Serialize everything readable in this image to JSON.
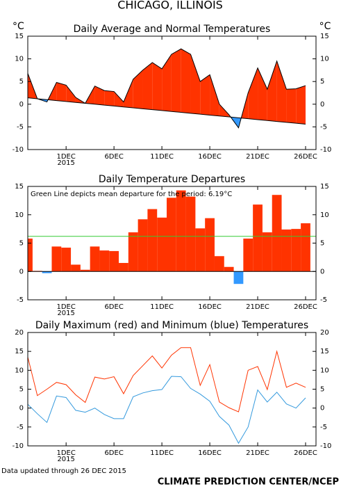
{
  "title": "CHICAGO, ILLINOIS",
  "footer_left": "Data updated through 26 DEC 2015",
  "footer_right": "CLIMATE PREDICTION CENTER/NCEP",
  "chart_data": [
    {
      "type": "area",
      "title": "Daily Average and Normal Temperatures",
      "ylabel": "°C",
      "categories": [
        null,
        null,
        null,
        null,
        "1DEC",
        null,
        null,
        null,
        null,
        "6DEC",
        null,
        null,
        null,
        null,
        "11DEC",
        null,
        null,
        null,
        null,
        "16DEC",
        null,
        null,
        null,
        null,
        "21DEC",
        null,
        null,
        null,
        null,
        "26DEC"
      ],
      "xsublabel": "2015",
      "series": [
        {
          "color": "#ff3300",
          "values": [
            6.8,
            1.2,
            0.5,
            4.8,
            4.2,
            1.5,
            0.2,
            4.0,
            3.0,
            2.8,
            0.5,
            5.5,
            7.5,
            9.2,
            7.8,
            11.0,
            12.2,
            11.0,
            5.0,
            6.5,
            0.0,
            -2.3,
            -5.2,
            2.5,
            8.0,
            3.3,
            9.5,
            3.3,
            3.4,
            4.1
          ]
        },
        {
          "color": "#000000",
          "values": [
            1.4,
            1.2,
            1.0,
            0.8,
            0.6,
            0.4,
            0.2,
            0.0,
            -0.2,
            -0.4,
            -0.6,
            -0.8,
            -1.0,
            -1.2,
            -1.4,
            -1.6,
            -1.8,
            -2.0,
            -2.2,
            -2.4,
            -2.6,
            -2.8,
            -3.0,
            -3.2,
            -3.4,
            -3.6,
            -3.8,
            -4.0,
            -4.2,
            -4.4
          ]
        }
      ],
      "below_color": "#3399ff",
      "ylim": [
        -10,
        15
      ],
      "yticks": [
        -10,
        -5,
        0,
        5,
        10,
        15
      ]
    },
    {
      "type": "bar",
      "title": "Daily Temperature Departures",
      "categories": [
        null,
        null,
        null,
        null,
        "1DEC",
        null,
        null,
        null,
        null,
        "6DEC",
        null,
        null,
        null,
        null,
        "11DEC",
        null,
        null,
        null,
        null,
        "16DEC",
        null,
        null,
        null,
        null,
        "21DEC",
        null,
        null,
        null,
        null,
        "26DEC"
      ],
      "xsublabel": "2015",
      "values": [
        5.8,
        0.1,
        -0.3,
        4.4,
        4.2,
        1.2,
        0.3,
        4.4,
        3.7,
        3.6,
        1.5,
        6.9,
        9.2,
        11.0,
        9.5,
        13.0,
        14.3,
        13.2,
        7.6,
        9.4,
        2.7,
        0.8,
        -2.2,
        5.8,
        11.8,
        6.9,
        13.5,
        7.4,
        7.5,
        8.5
      ],
      "color": "#ff3300",
      "negative_color": "#3399ff",
      "mean_line": 6.19,
      "mean_color": "#33cc33",
      "annotation": "Green Line depicts mean departure for the period: 6.19°C",
      "ylim": [
        -5,
        15
      ],
      "yticks": [
        -5,
        0,
        5,
        10,
        15
      ]
    },
    {
      "type": "line",
      "title": "Daily Maximum (red) and Minimum (blue) Temperatures",
      "categories": [
        null,
        null,
        null,
        null,
        "1DEC",
        null,
        null,
        null,
        null,
        "6DEC",
        null,
        null,
        null,
        null,
        "11DEC",
        null,
        null,
        null,
        null,
        "16DEC",
        null,
        null,
        null,
        null,
        "21DEC",
        null,
        null,
        null,
        null,
        "26DEC"
      ],
      "xsublabel": "2015",
      "series": [
        {
          "color": "#ff3300",
          "values": [
            13.5,
            3.3,
            5.0,
            6.8,
            6.2,
            3.5,
            1.5,
            8.2,
            7.7,
            8.3,
            3.8,
            8.6,
            11.2,
            13.8,
            10.6,
            14.0,
            16.0,
            16.0,
            6.0,
            11.5,
            1.6,
            0.1,
            -1.0,
            10.0,
            11.0,
            4.9,
            15.0,
            5.5,
            6.6,
            5.5
          ]
        },
        {
          "color": "#3399dd",
          "values": [
            1.0,
            -1.5,
            -3.8,
            3.2,
            2.8,
            -0.6,
            -1.1,
            0.0,
            -1.7,
            -2.8,
            -2.8,
            3.0,
            4.0,
            4.6,
            4.9,
            8.4,
            8.3,
            5.2,
            3.7,
            1.8,
            -2.2,
            -4.5,
            -9.3,
            -5.0,
            4.8,
            1.6,
            4.2,
            1.1,
            0.0,
            2.7
          ]
        }
      ],
      "ylim": [
        -10,
        20
      ],
      "yticks": [
        -10,
        -5,
        0,
        5,
        10,
        15,
        20
      ]
    }
  ]
}
